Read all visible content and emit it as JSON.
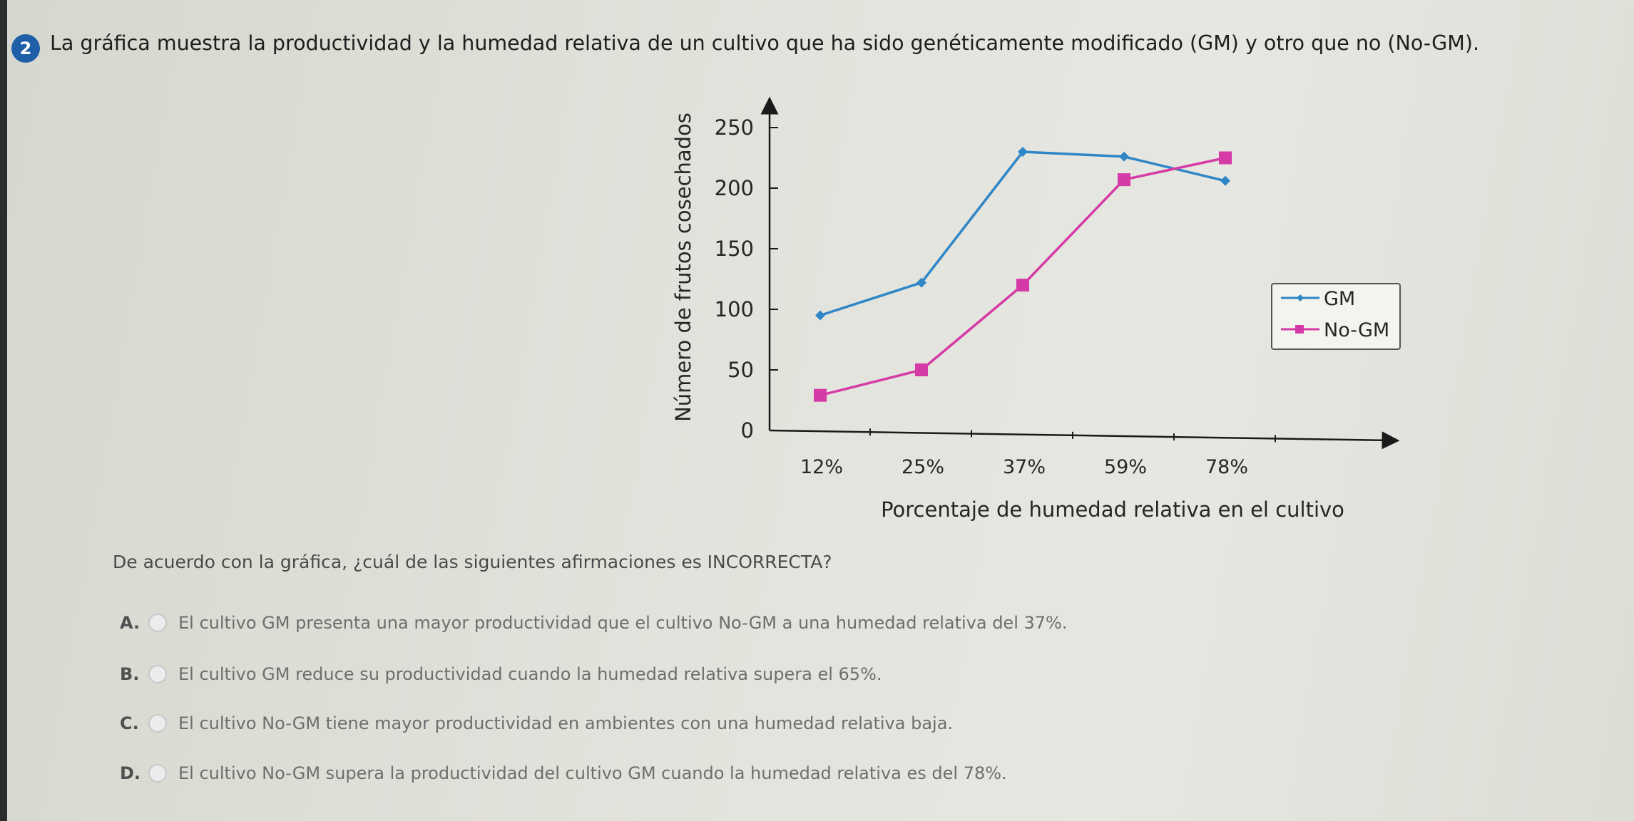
{
  "question_number": "2",
  "prompt": "La gráfica muestra la productividad y la humedad relativa de un cultivo que ha sido genéticamente modificado (GM) y otro que no (No-GM).",
  "question": "De acuerdo con la gráfica, ¿cuál de las siguientes afirmaciones es INCORRECTA?",
  "options": [
    {
      "letter": "A.",
      "text": "El cultivo GM presenta una mayor productividad que el cultivo No-GM a una humedad relativa del 37%."
    },
    {
      "letter": "B.",
      "text": "El cultivo GM reduce su productividad cuando la humedad relativa supera el 65%."
    },
    {
      "letter": "C.",
      "text": "El cultivo No-GM tiene mayor productividad en ambientes con una humedad relativa baja."
    },
    {
      "letter": "D.",
      "text": "El cultivo No-GM supera la productividad del cultivo GM cuando la humedad relativa es del 78%."
    }
  ],
  "chart_data": {
    "type": "line",
    "categories": [
      "12%",
      "25%",
      "37%",
      "59%",
      "78%"
    ],
    "series": [
      {
        "name": "GM",
        "values": [
          95,
          122,
          230,
          226,
          206
        ],
        "color": "#2f86c6",
        "marker": "diamond"
      },
      {
        "name": "No-GM",
        "values": [
          29,
          50,
          120,
          207,
          225
        ],
        "color": "#d63aa6",
        "marker": "square"
      }
    ],
    "xlabel": "Porcentaje de humedad relativa en el cultivo",
    "ylabel": "Número de frutos cosechados",
    "yticks": [
      0,
      50,
      100,
      150,
      200,
      250
    ],
    "ylim": [
      0,
      260
    ],
    "grid": false,
    "legend_position": "right"
  }
}
